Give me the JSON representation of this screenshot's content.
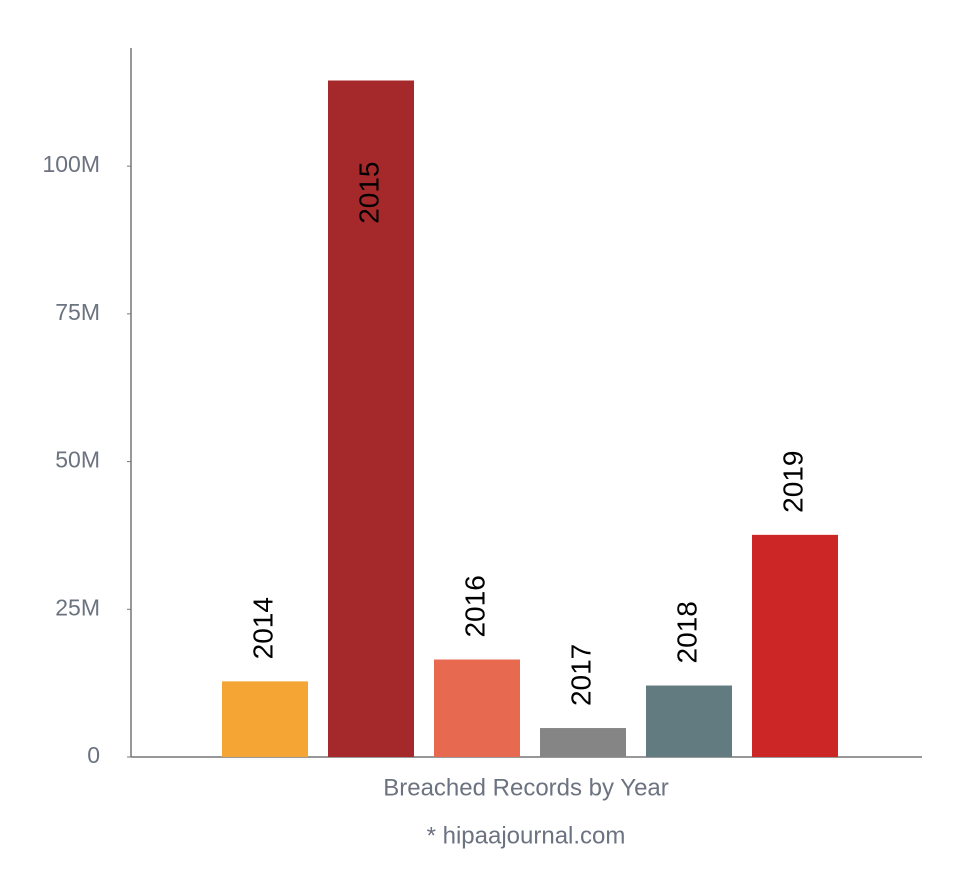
{
  "chart_data": {
    "type": "bar",
    "categories": [
      "2014",
      "2015",
      "2016",
      "2017",
      "2018",
      "2019"
    ],
    "values": [
      12800000,
      114500000,
      16500000,
      4900000,
      12100000,
      37600000
    ],
    "colors": [
      "#f4a534",
      "#a5292a",
      "#e76a50",
      "#858585",
      "#627b80",
      "#cc2627"
    ],
    "ylim": [
      0,
      120000000
    ],
    "yticks": [
      0,
      {
        "value": 25000000,
        "label": "25M"
      },
      {
        "value": 50000000,
        "label": "50M"
      },
      {
        "value": 75000000,
        "label": "75M"
      },
      {
        "value": 100000000,
        "label": "100M"
      }
    ],
    "x_label": "Breached Records by Year",
    "note": "* hipaajournal.com",
    "grid": false
  }
}
